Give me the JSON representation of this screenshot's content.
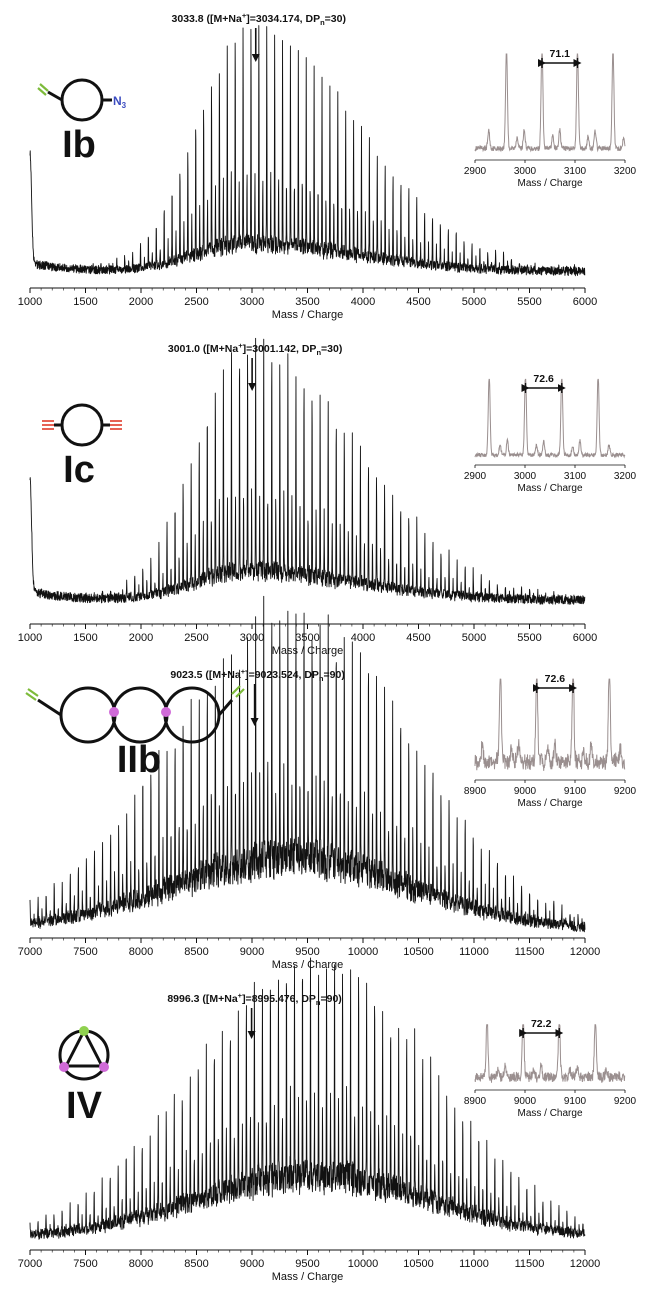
{
  "chart_data": [
    {
      "type": "line",
      "compound": "Ib",
      "xlabel": "Mass / Charge",
      "xlim": [
        1000,
        6000
      ],
      "xticks": [
        1000,
        1500,
        2000,
        2500,
        3000,
        3500,
        4000,
        4500,
        5000,
        5500,
        6000
      ],
      "end_group_label": "N3",
      "annotation": {
        "x": 3033.8,
        "main": "3033.8 ([M+Na",
        "sup": "+",
        "mid": "]=3034.174, DP",
        "sub": "n",
        "tail": "=30)"
      },
      "peak_spacing": 71.1,
      "envelope_peak_x": 2950,
      "inset": {
        "xlabel": "Mass / Charge",
        "xlim": [
          2900,
          3200
        ],
        "xticks": [
          2900,
          3000,
          3100,
          3200
        ],
        "spacing_label": "71.1",
        "spacing_from": 3034,
        "spacing_to": 3105,
        "peaks": [
          2963,
          3034,
          3105,
          3176
        ]
      }
    },
    {
      "type": "line",
      "compound": "Ic",
      "xlabel": "Mass / Charge",
      "xlim": [
        1000,
        6000
      ],
      "xticks": [
        1000,
        1500,
        2000,
        2500,
        3000,
        3500,
        4000,
        4500,
        5000,
        5500,
        6000
      ],
      "annotation": {
        "x": 3001.0,
        "main": "3001.0 ([M+Na",
        "sup": "+",
        "mid": "]=3001.142, DP",
        "sub": "n",
        "tail": "=30)"
      },
      "peak_spacing": 72.6,
      "envelope_peak_x": 2950,
      "inset": {
        "xlabel": "Mass / Charge",
        "xlim": [
          2900,
          3200
        ],
        "xticks": [
          2900,
          3000,
          3100,
          3200
        ],
        "spacing_label": "72.6",
        "spacing_from": 3001,
        "spacing_to": 3073.6,
        "peaks": [
          2928.4,
          3001,
          3073.6,
          3146.2
        ]
      }
    },
    {
      "type": "line",
      "compound": "IIb",
      "xlabel": "Mass / Charge",
      "xlim": [
        7000,
        12000
      ],
      "xticks": [
        7000,
        7500,
        8000,
        8500,
        9000,
        9500,
        10000,
        10500,
        11000,
        11500,
        12000
      ],
      "annotation": {
        "x": 9023.5,
        "main": "9023.5 ([M+Na",
        "sup": "+",
        "mid": "]=9023.524, DP",
        "sub": "n",
        "tail": "=90)"
      },
      "peak_spacing": 72.6,
      "envelope_peak_x": 9350,
      "inset": {
        "xlabel": "Mass / Charge",
        "xlim": [
          8900,
          9200
        ],
        "xticks": [
          8900,
          9000,
          9100,
          9200
        ],
        "spacing_label": "72.6",
        "spacing_from": 9023.5,
        "spacing_to": 9096.1,
        "peaks": [
          8950.9,
          9023.5,
          9096.1,
          9168.7
        ]
      }
    },
    {
      "type": "line",
      "compound": "IV",
      "xlabel": "Mass / Charge",
      "xlim": [
        7000,
        12000
      ],
      "xticks": [
        7000,
        7500,
        8000,
        8500,
        9000,
        9500,
        10000,
        10500,
        11000,
        11500,
        12000
      ],
      "annotation": {
        "x": 8996.3,
        "main": "8996.3 ([M+Na",
        "sup": "+",
        "mid": "]=8995.476, DP",
        "sub": "n",
        "tail": "=90)"
      },
      "peak_spacing": 72.2,
      "envelope_peak_x": 9550,
      "inset": {
        "xlabel": "Mass / Charge",
        "xlim": [
          8900,
          9200
        ],
        "xticks": [
          8900,
          9000,
          9100,
          9200
        ],
        "spacing_label": "72.2",
        "spacing_from": 8996.3,
        "spacing_to": 9068.5,
        "peaks": [
          8924.1,
          8996.3,
          9068.5,
          9140.7
        ]
      }
    }
  ],
  "colors": {
    "trace": "#111111",
    "inset_trace": "#9a8f8f",
    "azide": "#3b4cc0",
    "alkyne_green": "#7dbb3a",
    "alkyne_red": "#e03a2a",
    "junction": "#d06ad8",
    "junction_green": "#8fd14f"
  }
}
